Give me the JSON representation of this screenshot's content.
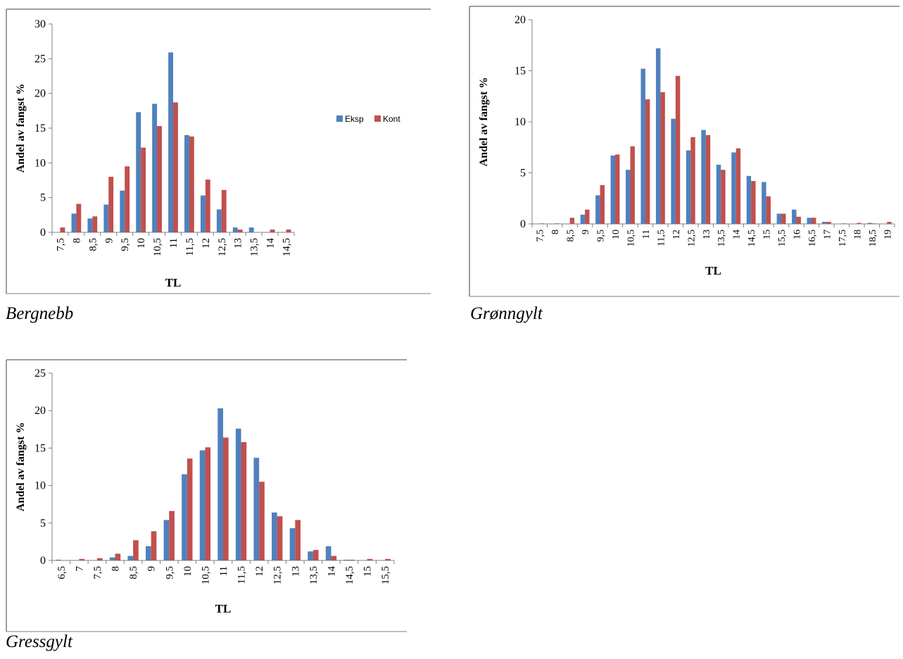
{
  "colors": {
    "eksp": "#4F81BD",
    "kont": "#C0504D",
    "axis": "#808080",
    "frame": "#7f7f7f"
  },
  "chart_data": [
    {
      "type": "bar",
      "caption": "Bergnebb",
      "xlabel": "TL",
      "ylabel": "Andel av fangst %",
      "ylim": [
        0,
        30
      ],
      "yticks": [
        0,
        5,
        10,
        15,
        20,
        25,
        30
      ],
      "grid": false,
      "legend": "right",
      "categories": [
        "7,5",
        "8",
        "8,5",
        "9",
        "9,5",
        "10",
        "10,5",
        "11",
        "11,5",
        "12",
        "12,5",
        "13",
        "13,5",
        "14",
        "14,5"
      ],
      "series": [
        {
          "name": "Eksp",
          "values": [
            0,
            2.7,
            2.0,
            4.0,
            6.0,
            17.3,
            18.5,
            25.9,
            14.0,
            5.3,
            3.3,
            0.7,
            0.7,
            0,
            0
          ]
        },
        {
          "name": "Kont",
          "values": [
            0.7,
            4.1,
            2.3,
            8.0,
            9.5,
            12.2,
            15.3,
            18.7,
            13.8,
            7.6,
            6.1,
            0.4,
            0,
            0.4,
            0.4
          ]
        }
      ]
    },
    {
      "type": "bar",
      "caption": "Grønngylt",
      "xlabel": "TL",
      "ylabel": "Andel av fangst %",
      "ylim": [
        0,
        20
      ],
      "yticks": [
        0,
        5,
        10,
        15,
        20
      ],
      "grid": false,
      "legend": "none",
      "categories": [
        "7,5",
        "8",
        "8,5",
        "9",
        "9,5",
        "10",
        "10,5",
        "11",
        "11,5",
        "12",
        "12,5",
        "13",
        "13,5",
        "14",
        "14,5",
        "15",
        "15,5",
        "16",
        "16,5",
        "17",
        "17,5",
        "18",
        "18,5",
        "19"
      ],
      "series": [
        {
          "name": "Eksp",
          "values": [
            0,
            0,
            0,
            0.9,
            2.8,
            6.7,
            5.3,
            15.2,
            17.2,
            10.3,
            7.2,
            9.2,
            5.8,
            7.0,
            4.7,
            4.1,
            1.0,
            1.4,
            0.6,
            0.2,
            0,
            0,
            0.1,
            0
          ]
        },
        {
          "name": "Kont",
          "values": [
            0.05,
            0.05,
            0.6,
            1.4,
            3.8,
            6.8,
            7.6,
            12.2,
            12.9,
            14.5,
            8.5,
            8.7,
            5.3,
            7.4,
            4.2,
            2.7,
            1.0,
            0.7,
            0.6,
            0.2,
            0.05,
            0.1,
            0.05,
            0.2
          ]
        }
      ]
    },
    {
      "type": "bar",
      "caption": "Gressgylt",
      "xlabel": "TL",
      "ylabel": "Andel av fangst %",
      "ylim": [
        0,
        25
      ],
      "yticks": [
        0,
        5,
        10,
        15,
        20,
        25
      ],
      "grid": false,
      "legend": "none",
      "categories": [
        "6,5",
        "7",
        "7,5",
        "8",
        "8,5",
        "9",
        "9,5",
        "10",
        "10,5",
        "11",
        "11,5",
        "12",
        "12,5",
        "13",
        "13,5",
        "14",
        "14,5",
        "15",
        "15,5"
      ],
      "series": [
        {
          "name": "Eksp",
          "values": [
            0.1,
            0,
            0,
            0.4,
            0.6,
            1.9,
            5.4,
            11.5,
            14.7,
            20.3,
            17.6,
            13.7,
            6.4,
            4.3,
            1.2,
            1.9,
            0.1,
            0,
            0
          ]
        },
        {
          "name": "Kont",
          "values": [
            0,
            0.2,
            0.3,
            0.9,
            2.7,
            3.9,
            6.6,
            13.6,
            15.1,
            16.4,
            15.8,
            10.5,
            5.9,
            5.4,
            1.4,
            0.6,
            0.1,
            0.2,
            0.2
          ]
        }
      ]
    }
  ]
}
